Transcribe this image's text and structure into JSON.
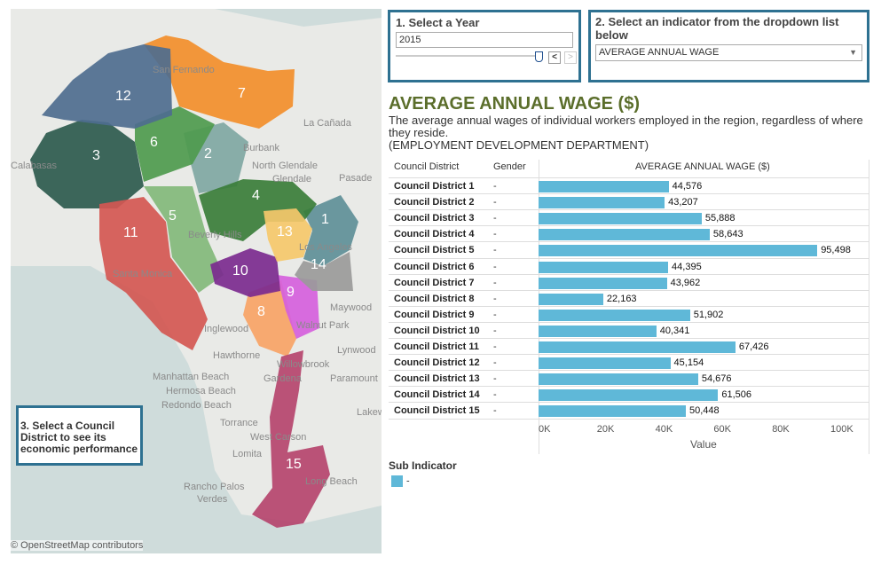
{
  "map": {
    "attribution": "© OpenStreetMap contributors",
    "places": [
      "San Fernando",
      "La Cañada",
      "Burbank",
      "North Glendale",
      "Glendale",
      "Pasade",
      "Calabasas",
      "Beverly Hills",
      "Santa Monica",
      "Los Angeles",
      "Walnut Park",
      "Maywood",
      "Inglewood",
      "Lynwood",
      "Willowbrook",
      "Hawthorne",
      "Gardena",
      "Paramount",
      "Manhattan Beach",
      "Hermosa Beach",
      "Redondo Beach",
      "Torrance",
      "West Carson",
      "Lomita",
      "Long Beach",
      "Rancho Palos",
      "Verdes",
      "Lakew"
    ],
    "districts": [
      {
        "num": "1",
        "color": "#5e8f98"
      },
      {
        "num": "2",
        "color": "#7fa7a3"
      },
      {
        "num": "3",
        "color": "#2d5a4e"
      },
      {
        "num": "4",
        "color": "#3a7d3a"
      },
      {
        "num": "5",
        "color": "#82b97b"
      },
      {
        "num": "6",
        "color": "#4e9a4e"
      },
      {
        "num": "7",
        "color": "#f28e2b"
      },
      {
        "num": "8",
        "color": "#f7a366"
      },
      {
        "num": "9",
        "color": "#d55fdd"
      },
      {
        "num": "10",
        "color": "#7b2a8f"
      },
      {
        "num": "11",
        "color": "#d45753"
      },
      {
        "num": "12",
        "color": "#4e6d8f"
      },
      {
        "num": "13",
        "color": "#f5c86b"
      },
      {
        "num": "14",
        "color": "#9a9a9a"
      },
      {
        "num": "15",
        "color": "#b5446e"
      }
    ],
    "card": "3. Select a Council District to see its economic performance"
  },
  "year": {
    "label": "1. Select a Year",
    "value": "2015",
    "prev": "<",
    "next": ">"
  },
  "indicator": {
    "label": "2. Select an indicator from the dropdown list below",
    "value": "AVERAGE ANNUAL WAGE"
  },
  "title": "AVERAGE ANNUAL WAGE ($)",
  "description": "The average annual wages of individual workers employed in the region, regardless of where they reside.",
  "source": "(EMPLOYMENT DEVELOPMENT DEPARTMENT)",
  "chart_data": {
    "type": "bar",
    "title": "AVERAGE ANNUAL WAGE ($)",
    "col_headers": [
      "Council District",
      "Gender"
    ],
    "categories": [
      "Council District 1",
      "Council District 2",
      "Council District 3",
      "Council District 4",
      "Council District 5",
      "Council District 6",
      "Council District 7",
      "Council District 8",
      "Council District 9",
      "Council District 10",
      "Council District 11",
      "Council District 12",
      "Council District 13",
      "Council District 14",
      "Council District 15"
    ],
    "gender": "-",
    "values": [
      44576,
      43207,
      55888,
      58643,
      95498,
      44395,
      43962,
      22163,
      51902,
      40341,
      67426,
      45154,
      54676,
      61506,
      50448
    ],
    "labels": [
      "44,576",
      "43,207",
      "55,888",
      "58,643",
      "95,498",
      "44,395",
      "43,962",
      "22,163",
      "51,902",
      "40,341",
      "67,426",
      "45,154",
      "54,676",
      "61,506",
      "50,448"
    ],
    "xlabel": "Value",
    "xticks": [
      "0K",
      "20K",
      "40K",
      "60K",
      "80K",
      "100K"
    ],
    "xlim": [
      0,
      113000
    ],
    "color": "#5fb8d8",
    "legend": {
      "title": "Sub Indicator",
      "items": [
        "-"
      ]
    }
  }
}
